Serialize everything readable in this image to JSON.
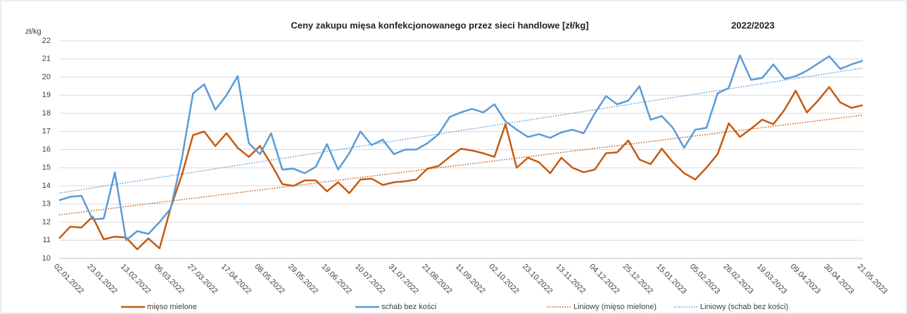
{
  "chart_data": {
    "type": "line",
    "title": "Ceny zakupu mięsa konfekcjonowanego przez sieci handlowe [zł/kg]",
    "subtitle": "2022/2023",
    "y_label": "zł/kg",
    "categories": [
      "02.01.2022",
      null,
      null,
      "23.01.2022",
      null,
      null,
      "13.02.2022",
      null,
      null,
      "06.03.2022",
      null,
      null,
      "27.03.2022",
      null,
      null,
      "17.04.2022",
      null,
      null,
      "08.05.2022",
      null,
      null,
      "29.05.2022",
      null,
      null,
      "19.06.2022",
      null,
      null,
      "10.07.2022",
      null,
      null,
      "31.07.2022",
      null,
      null,
      "21.08.2022",
      null,
      null,
      "11.09.2022",
      null,
      null,
      "02.10.2022",
      null,
      null,
      "23.10.2022",
      null,
      null,
      "13.11.2022",
      null,
      null,
      "04.12.2022",
      null,
      null,
      "25.12.2022",
      null,
      null,
      "15.01.2023",
      null,
      null,
      "05.02.2023",
      null,
      null,
      "26.02.2023",
      null,
      null,
      "19.03.2023",
      null,
      null,
      "09.04.2023",
      null,
      null,
      "30.04.2023",
      null,
      null,
      "21.05.2023"
    ],
    "series": [
      {
        "name": "mięso mielone",
        "color": "#c55a11",
        "values": [
          11.1,
          11.75,
          11.7,
          12.3,
          11.05,
          11.2,
          11.15,
          10.5,
          11.1,
          10.55,
          12.8,
          14.6,
          16.8,
          17.0,
          16.2,
          16.9,
          16.1,
          15.6,
          16.2,
          15.2,
          14.1,
          14.0,
          14.3,
          14.3,
          13.7,
          14.2,
          13.6,
          14.35,
          14.4,
          14.05,
          14.2,
          14.25,
          14.35,
          14.95,
          15.1,
          15.6,
          16.05,
          15.95,
          15.8,
          15.6,
          17.4,
          15.0,
          15.55,
          15.3,
          14.7,
          15.55,
          15.0,
          14.75,
          14.9,
          15.8,
          15.85,
          16.5,
          15.45,
          15.2,
          16.05,
          15.3,
          14.7,
          14.35,
          15.0,
          15.75,
          17.45,
          16.7,
          17.15,
          17.65,
          17.4,
          18.2,
          19.25,
          18.05,
          18.7,
          19.45,
          18.6,
          18.3,
          18.45
        ]
      },
      {
        "name": "schab bez kości",
        "color": "#5b9bd5",
        "values": [
          13.2,
          13.4,
          13.45,
          12.15,
          12.2,
          14.75,
          11.0,
          11.5,
          11.35,
          12.0,
          12.75,
          15.5,
          19.1,
          19.6,
          18.2,
          19.0,
          20.05,
          16.35,
          15.75,
          16.9,
          14.9,
          14.95,
          14.7,
          15.05,
          16.3,
          14.9,
          15.8,
          17.0,
          16.25,
          16.55,
          15.75,
          16.0,
          16.0,
          16.35,
          16.85,
          17.8,
          18.05,
          18.25,
          18.05,
          18.5,
          17.55,
          17.1,
          16.7,
          16.85,
          16.65,
          16.95,
          17.1,
          16.9,
          18.0,
          18.95,
          18.5,
          18.7,
          19.5,
          17.65,
          17.85,
          17.2,
          16.1,
          17.1,
          17.2,
          19.1,
          19.4,
          21.2,
          19.85,
          19.95,
          20.7,
          19.9,
          20.05,
          20.35,
          20.75,
          21.15,
          20.45,
          20.7,
          20.9
        ]
      }
    ],
    "trendlines": [
      {
        "name": "Liniowy (mięso mielone)",
        "color": "#c55a11",
        "start": 12.4,
        "end": 17.9
      },
      {
        "name": "Liniowy (schab bez kości)",
        "color": "#5b9bd5",
        "start": 13.6,
        "end": 20.5
      }
    ],
    "ylim": [
      10,
      22
    ],
    "yticks": [
      10,
      11,
      12,
      13,
      14,
      15,
      16,
      17,
      18,
      19,
      20,
      21,
      22
    ],
    "grid": true,
    "legend": "bottom"
  }
}
